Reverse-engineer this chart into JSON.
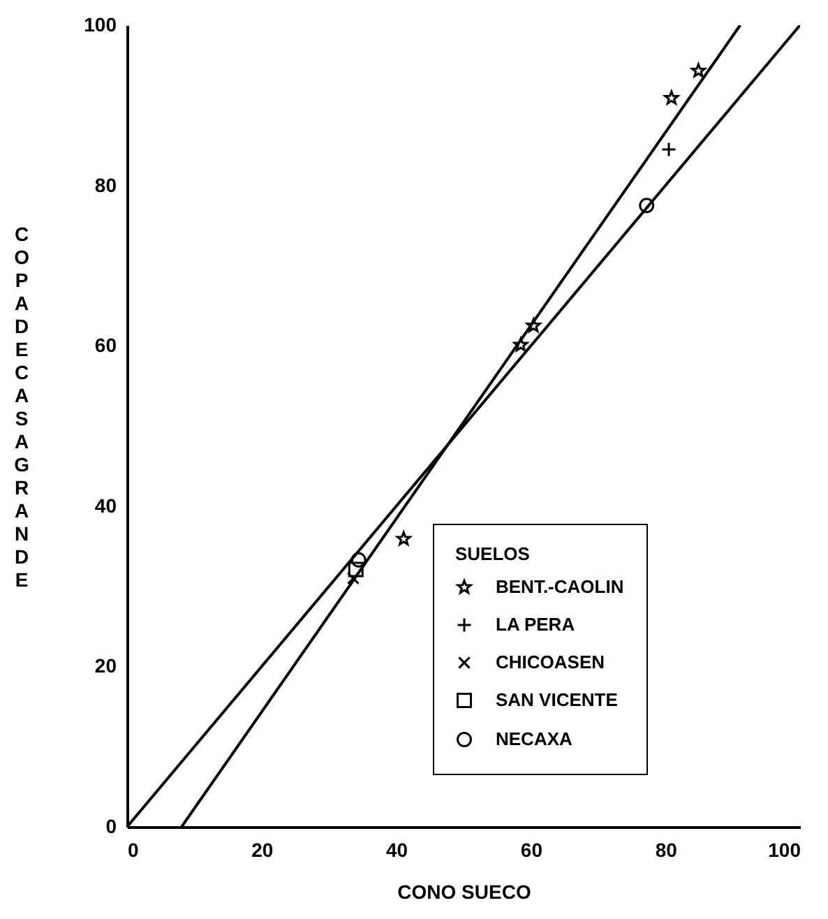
{
  "chart_data": {
    "type": "scatter",
    "xlabel": "CONO SUECO",
    "ylabel": "COPA DE CASAGRANDE",
    "legend_title": "SUELOS",
    "legend": "bottom right",
    "xlim": [
      0,
      100
    ],
    "ylim": [
      0,
      100
    ],
    "xticks": [
      0,
      20,
      40,
      60,
      80,
      100
    ],
    "yticks": [
      0,
      20,
      40,
      60,
      80,
      100
    ],
    "series": [
      {
        "name": "BENT.-CAOLIN",
        "marker": "star",
        "color": "#000000",
        "x": [
          84.9,
          80.9,
          60.4,
          58.5,
          41.1
        ],
        "values": [
          94.3,
          90.9,
          62.5,
          60.1,
          35.9
        ]
      },
      {
        "name": "LA PERA",
        "marker": "plus",
        "color": "#000000",
        "x": [
          80.5
        ],
        "values": [
          84.5
        ]
      },
      {
        "name": "CHICOASEN",
        "marker": "cross",
        "color": "#000000",
        "x": [
          33.6
        ],
        "values": [
          31.0
        ]
      },
      {
        "name": "SAN VICENTE",
        "marker": "square",
        "color": "#000000",
        "x": [
          34.0
        ],
        "values": [
          32.1
        ]
      },
      {
        "name": "NECAXA",
        "marker": "circle",
        "color": "#000000",
        "x": [
          77.2,
          34.4
        ],
        "values": [
          77.5,
          33.3
        ]
      },
      {
        "type": "line",
        "color": "#000000",
        "line_style": "solid",
        "x": [
          0,
          100
        ],
        "values": [
          0,
          100
        ]
      },
      {
        "type": "line",
        "color": "#000000",
        "line_style": "solid",
        "x": [
          8.1,
          91.1
        ],
        "values": [
          0,
          100
        ]
      }
    ]
  }
}
